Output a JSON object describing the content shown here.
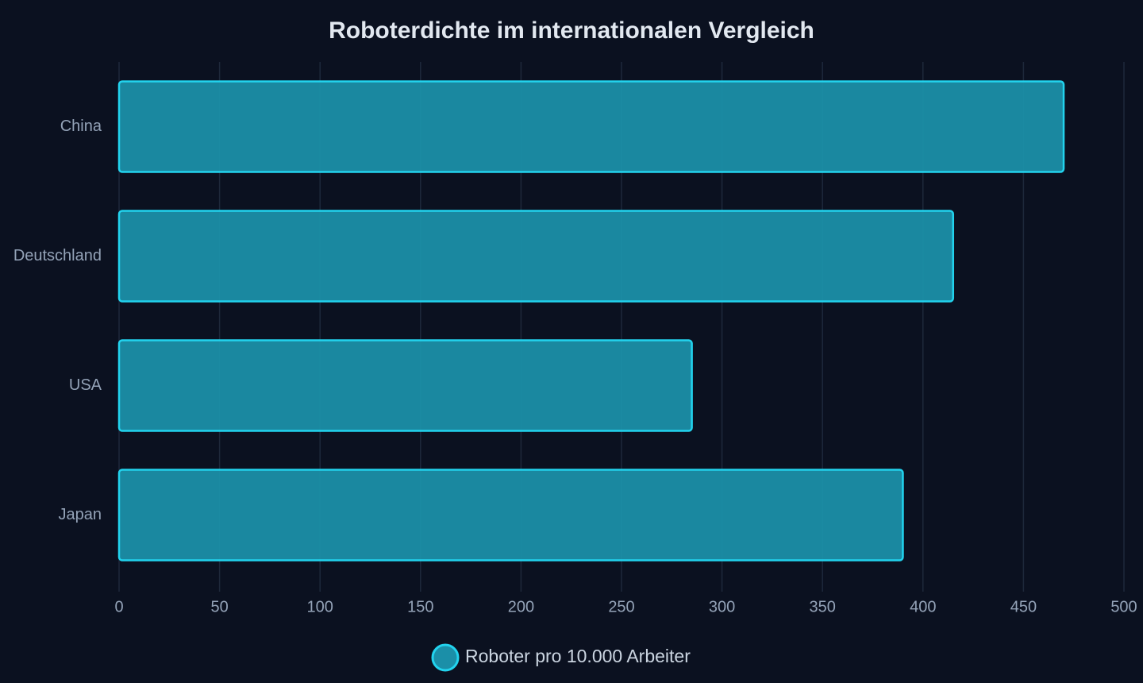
{
  "chart_data": {
    "type": "bar",
    "orientation": "horizontal",
    "title": "Roboterdichte im internationalen Vergleich",
    "categories": [
      "China",
      "Deutschland",
      "USA",
      "Japan"
    ],
    "series": [
      {
        "name": "Roboter pro 10.000 Arbeiter",
        "color": "#1b8fa8",
        "values": [
          470,
          415,
          285,
          390
        ]
      }
    ],
    "xlim": [
      0,
      500
    ],
    "xticks": [
      0,
      50,
      100,
      150,
      200,
      250,
      300,
      350,
      400,
      450,
      500
    ],
    "grid": true,
    "legend": "bottom"
  }
}
